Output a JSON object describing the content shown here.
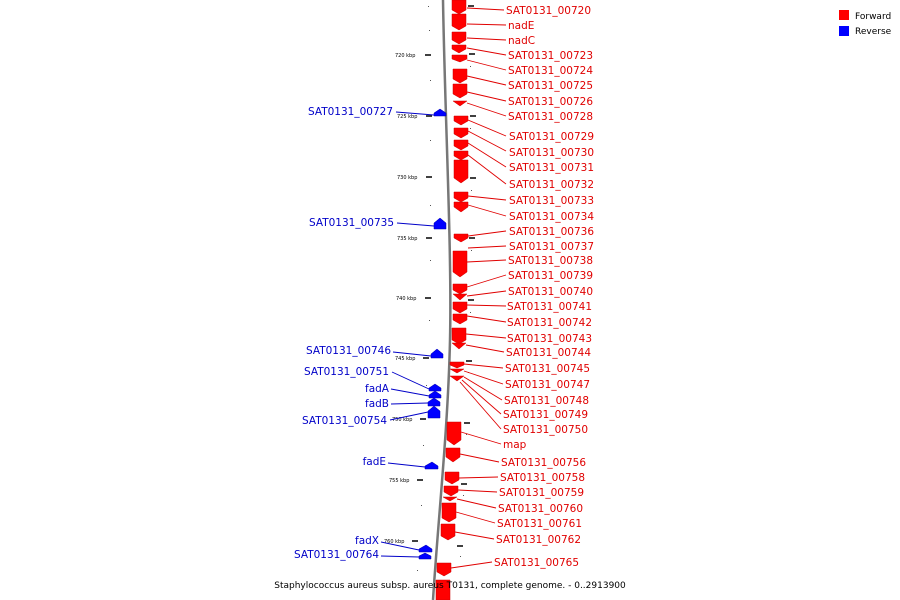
{
  "legend": {
    "forward_label": "Forward",
    "reverse_label": "Reverse",
    "forward_color": "#ff0000",
    "reverse_color": "#0000ff"
  },
  "caption": "Staphylococcus aureus subsp. aureus T0131, complete genome. - 0..2913900",
  "ticks": [
    "720 kbp",
    "725 kbp",
    "730 kbp",
    "735 kbp",
    "740 kbp",
    "745 kbp",
    "750 kbp",
    "755 kbp",
    "760 kbp"
  ],
  "forward_genes": [
    "SAT0131_00720",
    "nadE",
    "nadC",
    "SAT0131_00723",
    "SAT0131_00724",
    "SAT0131_00725",
    "SAT0131_00726",
    "SAT0131_00728",
    "SAT0131_00729",
    "SAT0131_00730",
    "SAT0131_00731",
    "SAT0131_00732",
    "SAT0131_00733",
    "SAT0131_00734",
    "SAT0131_00736",
    "SAT0131_00737",
    "SAT0131_00738",
    "SAT0131_00739",
    "SAT0131_00740",
    "SAT0131_00741",
    "SAT0131_00742",
    "SAT0131_00743",
    "SAT0131_00744",
    "SAT0131_00745",
    "SAT0131_00747",
    "SAT0131_00748",
    "SAT0131_00749",
    "SAT0131_00750",
    "map",
    "SAT0131_00756",
    "SAT0131_00758",
    "SAT0131_00759",
    "SAT0131_00760",
    "SAT0131_00761",
    "SAT0131_00762",
    "SAT0131_00765"
  ],
  "reverse_genes": [
    "SAT0131_00727",
    "SAT0131_00735",
    "SAT0131_00746",
    "SAT0131_00751",
    "fadA",
    "fadB",
    "SAT0131_00754",
    "fadE",
    "fadX",
    "SAT0131_00764"
  ]
}
